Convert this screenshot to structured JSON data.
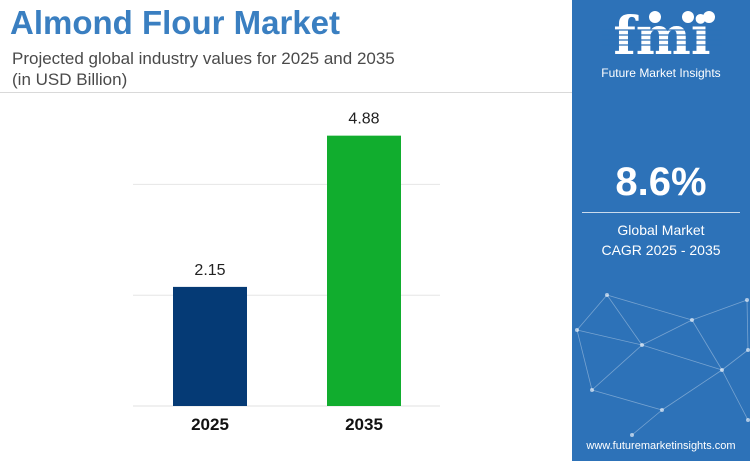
{
  "header": {
    "title": "Almond Flour Market",
    "subtitle_line1": "Projected global industry values for 2025 and 2035",
    "subtitle_line2": "(in USD Billion)"
  },
  "sidebar": {
    "logo_text": "fmi",
    "brand_name": "Future Market Insights",
    "cagr_value": "8.6%",
    "cagr_label_line1": "Global Market",
    "cagr_label_line2": "CAGR 2025 - 2035",
    "website": "www.futuremarketinsights.com"
  },
  "colors": {
    "title": "#3a7fc1",
    "sidebar_bg": "#2d72b8",
    "bar_2025": "#053a75",
    "bar_2035": "#11ad2e"
  },
  "chart_data": {
    "type": "bar",
    "categories": [
      "2025",
      "2035"
    ],
    "values": [
      2.15,
      4.88
    ],
    "data_labels": [
      "2.15",
      "4.88"
    ],
    "bar_colors": [
      "#053a75",
      "#11ad2e"
    ],
    "title": "Almond Flour Market",
    "subtitle": "Projected global industry values for 2025 and 2035 (in USD Billion)",
    "xlabel": "",
    "ylabel": "",
    "ylim": [
      0,
      5.65
    ],
    "grid": true
  }
}
